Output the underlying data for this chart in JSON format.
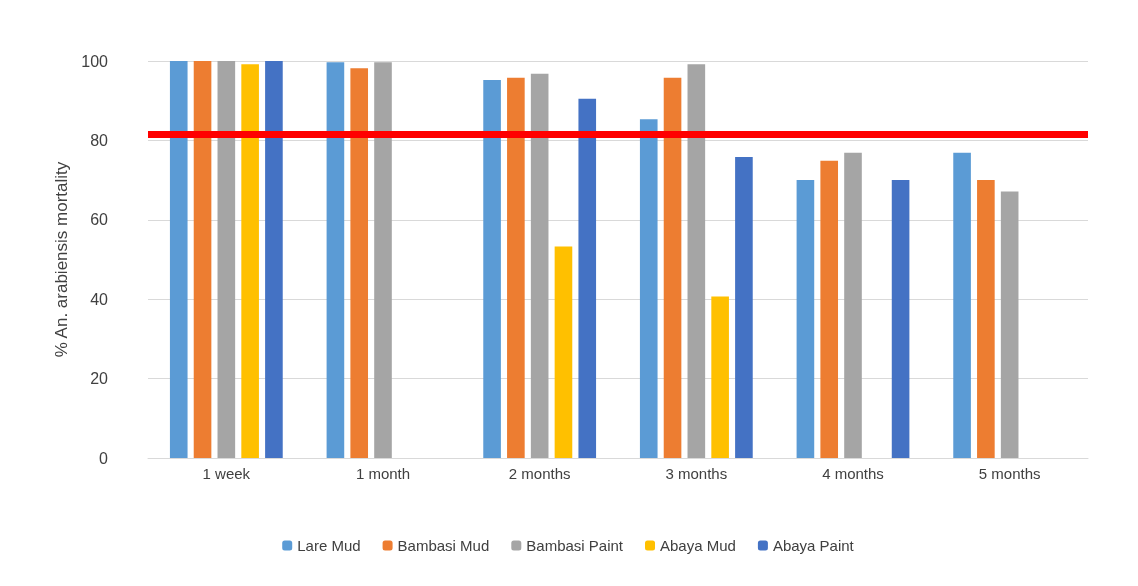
{
  "chart_data": {
    "type": "bar",
    "ylabel": "% An. arabiensis mortality",
    "categories": [
      "1 week",
      "1 month",
      "2 months",
      "3 months",
      "4 months",
      "5 months"
    ],
    "series": [
      {
        "name": "Lare Mud",
        "color": "#5b9bd5",
        "values": [
          100,
          99.7,
          95.2,
          85.3,
          70,
          76.9
        ]
      },
      {
        "name": "Bambasi Mud",
        "color": "#ed7d31",
        "values": [
          100,
          98.2,
          95.8,
          95.8,
          74.9,
          70
        ]
      },
      {
        "name": "Bambasi Paint",
        "color": "#a5a5a5",
        "values": [
          100,
          99.7,
          96.8,
          99.2,
          76.9,
          67.1
        ]
      },
      {
        "name": "Abaya Mud",
        "color": "#ffc000",
        "values": [
          99.2,
          null,
          53.3,
          40.7,
          null,
          null
        ]
      },
      {
        "name": "Abaya Paint",
        "color": "#4472c4",
        "values": [
          100,
          null,
          90.5,
          75.8,
          70,
          null
        ]
      }
    ],
    "ylim": [
      0,
      100
    ],
    "yticks": [
      0,
      20,
      40,
      60,
      80,
      100
    ],
    "grid": "y",
    "legend": "bottom",
    "ref_lines": [
      {
        "axis": "y",
        "value": 81.5,
        "color": "#ff0000"
      }
    ]
  }
}
